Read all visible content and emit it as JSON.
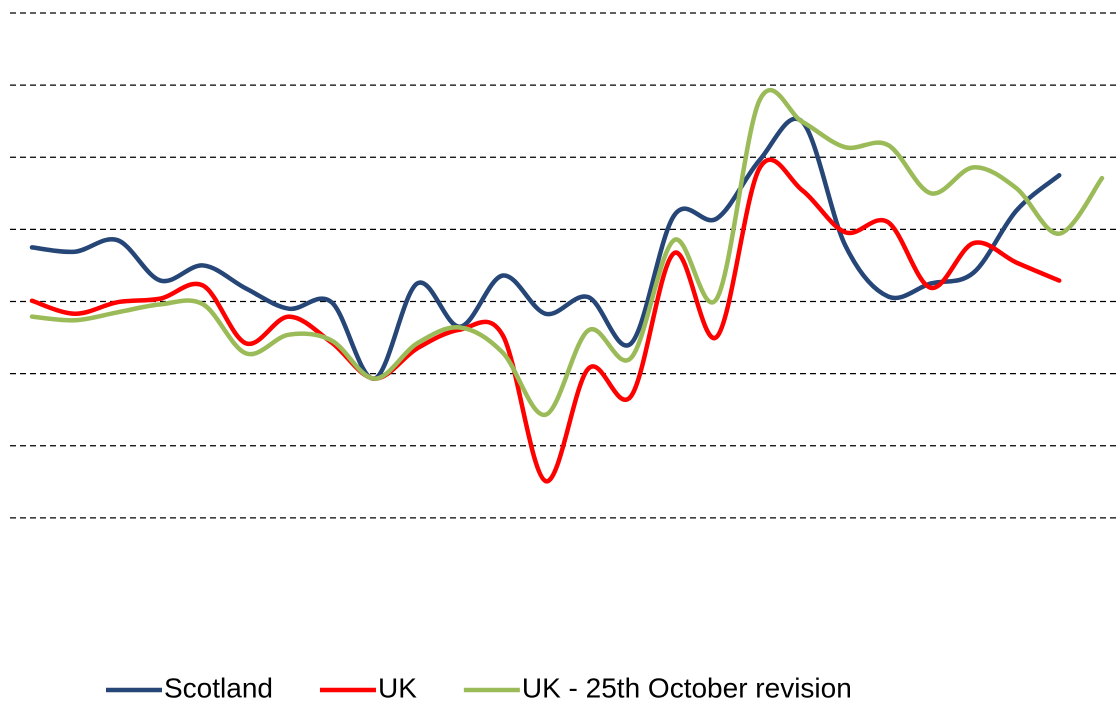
{
  "chart_data": {
    "type": "line",
    "categories": [
      null,
      null,
      null,
      null,
      null,
      null,
      null,
      null,
      null,
      null,
      null,
      null,
      null,
      null,
      null,
      null,
      null,
      null,
      null,
      null,
      null,
      null,
      null,
      null,
      null,
      null
    ],
    "series": [
      {
        "name": "Scotland",
        "color": "#254677",
        "values": [
          -0.25,
          -0.31,
          -0.15,
          -0.71,
          -0.5,
          -0.82,
          -1.1,
          -1.01,
          -2.07,
          -0.75,
          -1.35,
          -0.64,
          -1.17,
          -0.94,
          -1.58,
          0.19,
          0.15,
          0.96,
          1.49,
          -0.22,
          -0.93,
          -0.75,
          -0.6,
          0.26,
          0.75,
          null
        ]
      },
      {
        "name": "UK",
        "color": "#ff0000",
        "values": [
          -0.99,
          -1.17,
          -1.01,
          -0.96,
          -0.78,
          -1.58,
          -1.21,
          -1.57,
          -2.07,
          -1.65,
          -1.39,
          -1.47,
          -3.49,
          -1.93,
          -2.31,
          -0.33,
          -1.49,
          0.85,
          0.54,
          -0.04,
          0.1,
          -0.81,
          -0.19,
          -0.46,
          -0.71,
          null
        ]
      },
      {
        "name": "UK - 25th October revision",
        "color": "#9bbb59",
        "values": [
          -1.21,
          -1.26,
          -1.15,
          -1.04,
          -1.04,
          -1.72,
          -1.46,
          -1.54,
          -2.07,
          -1.58,
          -1.36,
          -1.71,
          -2.57,
          -1.4,
          -1.78,
          -0.15,
          -0.96,
          1.79,
          1.49,
          1.14,
          1.17,
          0.5,
          0.86,
          0.57,
          -0.06,
          0.71
        ]
      }
    ],
    "ylim": [
      -5,
      3
    ],
    "yticks": [
      -4,
      -3,
      -2,
      -1,
      0,
      1,
      2,
      3
    ],
    "grid": true,
    "smooth": true,
    "legend": "bottom"
  }
}
